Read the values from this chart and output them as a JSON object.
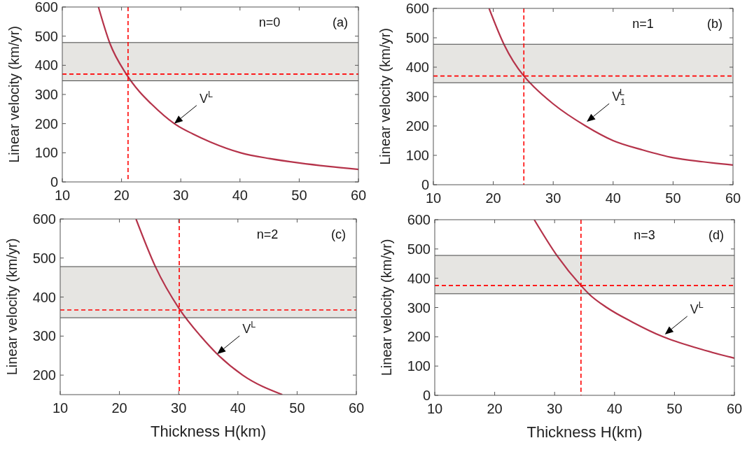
{
  "chart_data": [
    {
      "type": "line",
      "ylabel": "Linear velocity (km/yr)",
      "xlim": [
        10,
        60
      ],
      "xticks": [
        10,
        20,
        30,
        40,
        50,
        60
      ],
      "ylim": [
        0,
        600
      ],
      "yticks": [
        0,
        100,
        200,
        300,
        400,
        500,
        600
      ],
      "grid": false,
      "series": [
        {
          "color": "#b5334a",
          "x": [
            16.1,
            18,
            20.8,
            23,
            25,
            28.9,
            32,
            35,
            40.1,
            45,
            50,
            55,
            60
          ],
          "values": [
            600,
            477,
            370,
            310,
            268,
            200,
            165,
            137,
            100,
            80,
            65,
            53,
            43
          ]
        }
      ],
      "bands": [
        {
          "axis": "y",
          "from": 347,
          "to": 478,
          "color": "#e6e5e2"
        }
      ],
      "ref_lines": [
        {
          "axis": "y",
          "value": 347,
          "color": "#444444",
          "line_style": "solid"
        },
        {
          "axis": "y",
          "value": 478,
          "color": "#444444",
          "line_style": "solid"
        },
        {
          "axis": "y",
          "value": 370,
          "color": "#ff0000",
          "line_style": "dashed"
        },
        {
          "axis": "x",
          "value": 21.1,
          "color": "#ff0000",
          "line_style": "dashed"
        }
      ],
      "annotations": [
        "n=0",
        "(a)",
        {
          "text": "V$^{L}$",
          "x": 28.9,
          "y": 200
        }
      ]
    },
    {
      "type": "line",
      "ylabel": "Linear velocity (km/yr)",
      "xlim": [
        10,
        60
      ],
      "xticks": [
        10,
        20,
        30,
        40,
        50,
        60
      ],
      "ylim": [
        0,
        600
      ],
      "yticks": [
        0,
        100,
        200,
        300,
        400,
        500,
        600
      ],
      "grid": false,
      "series": [
        {
          "color": "#b5334a",
          "x": [
            19.3,
            21.8,
            25.1,
            26.2,
            30,
            35.4,
            40,
            45,
            50,
            55,
            60
          ],
          "values": [
            600,
            477,
            370,
            345,
            275,
            200,
            150,
            118,
            92,
            78,
            67
          ]
        }
      ],
      "bands": [
        {
          "axis": "y",
          "from": 347,
          "to": 478,
          "color": "#e6e5e2"
        }
      ],
      "ref_lines": [
        {
          "axis": "y",
          "value": 347,
          "color": "#444444",
          "line_style": "solid"
        },
        {
          "axis": "y",
          "value": 478,
          "color": "#444444",
          "line_style": "solid"
        },
        {
          "axis": "y",
          "value": 370,
          "color": "#ff0000",
          "line_style": "dashed"
        },
        {
          "axis": "x",
          "value": 25.1,
          "color": "#ff0000",
          "line_style": "dashed"
        }
      ],
      "annotations": [
        "n=1",
        "(b)",
        {
          "text": "V$_{1}$$^{L}$",
          "x": 35.6,
          "y": 214
        }
      ]
    },
    {
      "type": "line",
      "xlabel": "Thickness H(km)",
      "ylabel": "Linear velocity (km/yr)",
      "xlim": [
        10,
        60
      ],
      "xticks": [
        10,
        20,
        30,
        40,
        50,
        60
      ],
      "ylim": [
        150,
        600
      ],
      "yticks": [
        200,
        300,
        400,
        500,
        600
      ],
      "grid": false,
      "series": [
        {
          "color": "#b5334a",
          "x": [
            22.8,
            26.1,
            30.1,
            33.7,
            36.5,
            40.8,
            47.5
          ],
          "values": [
            600,
            477,
            370,
            300,
            254,
            200,
            150
          ]
        }
      ],
      "bands": [
        {
          "axis": "y",
          "from": 347,
          "to": 478,
          "color": "#e6e5e2"
        }
      ],
      "ref_lines": [
        {
          "axis": "y",
          "value": 347,
          "color": "#444444",
          "line_style": "solid"
        },
        {
          "axis": "y",
          "value": 478,
          "color": "#444444",
          "line_style": "solid"
        },
        {
          "axis": "y",
          "value": 367,
          "color": "#ff0000",
          "line_style": "dashed"
        },
        {
          "axis": "x",
          "value": 30.1,
          "color": "#ff0000",
          "line_style": "dashed"
        }
      ],
      "annotations": [
        "n=2",
        "(c)",
        {
          "text": "V$^{L}$",
          "x": 36.5,
          "y": 254
        }
      ]
    },
    {
      "type": "line",
      "xlabel": "Thickness H(km)",
      "ylabel": "Linear velocity (km/yr)",
      "xlim": [
        10,
        60
      ],
      "xticks": [
        10,
        20,
        30,
        40,
        50,
        60
      ],
      "ylim": [
        0,
        600
      ],
      "yticks": [
        0,
        100,
        200,
        300,
        400,
        500,
        600
      ],
      "grid": false,
      "series": [
        {
          "color": "#b5334a",
          "x": [
            26.6,
            30.4,
            34.4,
            35.8,
            38.7,
            43,
            48.1,
            54,
            60
          ],
          "values": [
            600,
            477,
            375,
            345,
            300,
            250,
            200,
            160,
            127
          ]
        }
      ],
      "bands": [
        {
          "axis": "y",
          "from": 347,
          "to": 478,
          "color": "#e6e5e2"
        }
      ],
      "ref_lines": [
        {
          "axis": "y",
          "value": 347,
          "color": "#444444",
          "line_style": "solid"
        },
        {
          "axis": "y",
          "value": 478,
          "color": "#444444",
          "line_style": "solid"
        },
        {
          "axis": "y",
          "value": 375,
          "color": "#ff0000",
          "line_style": "dashed"
        },
        {
          "axis": "x",
          "value": 34.4,
          "color": "#ff0000",
          "line_style": "dashed"
        }
      ],
      "annotations": [
        "n=3",
        "(d)",
        {
          "text": "V$^{L}$",
          "x": 48.4,
          "y": 208
        }
      ]
    }
  ]
}
